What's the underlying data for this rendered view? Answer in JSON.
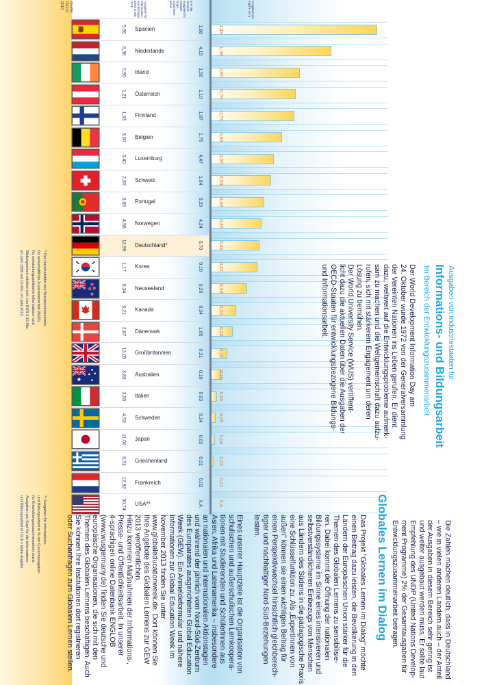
{
  "source": {
    "label": "Quelle:",
    "value": "OECD 2010"
  },
  "column_headers": {
    "spending": "Ausgaben für Informations- und Bildungs- arbeit in Mio. US $",
    "percent": "in % der Gesamt- ausgaben für Entwick- lungs- zusammen- arbeit",
    "per_capita": "Ausgaben pro Kopf in US $"
  },
  "highlight_color": "#fdf0d6",
  "accent_color": "#1ea6e0",
  "chart_data": {
    "type": "bar",
    "orientation": "horizontal",
    "categories": [
      "Spanien",
      "Niederlande",
      "Irland",
      "Österreich",
      "Finnland",
      "Belgien",
      "Luxemburg",
      "Schweiz",
      "Portugal",
      "Norwegen",
      "Deutschland*",
      "Korea",
      "Neuseeland",
      "Kanada",
      "Dänemark",
      "Großbritannien",
      "Australien",
      "Italien",
      "Schweden",
      "Japan",
      "Griechenland",
      "Frankreich",
      "USA**"
    ],
    "flags": [
      "flag-spain",
      "flag-netherlands",
      "flag-ireland",
      "flag-austria",
      "flag-finland",
      "flag-belgium",
      "flag-luxembourg",
      "flag-switzerland",
      "flag-portugal",
      "flag-norway",
      "flag-germany",
      "flag-korea",
      "flag-new-zealand",
      "flag-canada",
      "flag-denmark",
      "flag-united-kingdom",
      "flag-australia",
      "flag-italy",
      "flag-sweden",
      "flag-japan",
      "flag-greece",
      "flag-france",
      "flag-usa"
    ],
    "spending_mio_usd": [
      "5,95",
      "6,36",
      "0,90",
      "1,21",
      "1,33",
      "3,00",
      "0,40",
      "2,30",
      "0,65",
      "4,58",
      "12,99",
      "1,17",
      "0,34",
      "5,21",
      "2,87",
      "13,05",
      "3,83",
      "3,00",
      "4,53",
      "11,02",
      "0,51",
      "12,92",
      "30,74"
    ],
    "percent_of_total": [
      "1,88",
      "4,15",
      "1,56",
      "1,10",
      "1,87",
      "1,76",
      "4,47",
      "1,64",
      "0,29",
      "4,24",
      "0,70",
      "0,10",
      "0,26",
      "0,34",
      "1,05",
      "0,31",
      "0,16",
      "0,03",
      "0,24",
      "0,03",
      "0,01",
      "0,02",
      "k.A."
    ],
    "values": [
      "1,49",
      "1,08",
      "0,80",
      "0,76",
      "0,75",
      "0,64",
      "0,57",
      "0,54",
      "0,48",
      "0,46",
      "0,44",
      "0,42",
      "0,33",
      "0,23",
      "0,20",
      "0,15",
      "0,10",
      "0,06",
      "0,05",
      "0,04",
      "0,03",
      "0,01",
      "k.A."
    ],
    "highlighted": "Deutschland*",
    "xlim": [
      0,
      1.5
    ],
    "bar_gradient": [
      "#fffdf5",
      "#fdd659"
    ],
    "background_color": "#b6dff2"
  },
  "intro": {
    "kicker": "Ausgaben von Industriestaaten für",
    "title": "Informations- und Bildungsarbeit",
    "subtitle": "im Bereich der Entwicklungszusammenarbeit",
    "lines": [
      "Der World Development Information Day am",
      "24. Oktober wurde 1972 von der Generalversammlung",
      "der Vereinten Nationen ins Leben gerufen. Er dient",
      "dazu, weltweit auf die Entwicklungsprobleme aufmerk-",
      "sam zu machen und die Weltgemeinschaft dazu aufzu-",
      "rufen, sich mit stärkerem Engagement um deren",
      "Lösung zu bemühen.",
      "Der World University Service (WUS) veröffent-",
      "licht dazu die aktuellen Daten über die Ausgaben der",
      "OECD-Staaten für entwicklungsbezogene Bildungs-",
      "und Informationsarbeit."
    ]
  },
  "conclusion": {
    "lines": [
      "Die Zahlen machen deutlich, dass in Deutschland",
      "– wie in vielen anderen Ländern auch – der Anteil",
      "der Ausgaben in diesem Bereich sehr gering ist",
      "und weiter ausgebaut werden muss. Er sollte laut",
      "Empfehlung des UNDP (United Nations Develop-",
      "ment Programme) 2% der Gesamtausgaben für",
      "Entwicklungszusammenarbeit betragen."
    ]
  },
  "dialog": {
    "title": "Globales Lernen im Dialog",
    "para1": [
      "Das Projekt \"Globales Lernen im Dialog\" möchte",
      "einen Beitrag dazu leisten, die Bevölkerung in den",
      "Ländern der Europäischen Union stärker für die",
      "Themen des Globalen Lernens zu sensibilisie-",
      "ren. Dabei kommt der Öffnung der nationalen",
      "Bildungssysteme im Sinne eines intensiveren und",
      "selbstverständlicheren Einbezugs von Menschen",
      "aus Ländern des Südens in die pädagogische Praxis",
      "eine Schlüsselfunktion zu. Als „ExpertInnen von",
      "außen\" können sie einen wichtigen Beitrag für",
      "einen Perspektivwechsel hinsichtlich gleichberech-",
      "tigter und nachhaltiger Nord-Süd-Beziehungen",
      "leisten."
    ],
    "para2": [
      "Eines unserer Hauptziele ist die Organisation von",
      "schulischen und außerschulischen Lernkoopera-",
      "tionen mit Studierenden und SchülerInnen aus",
      "Asien, Afrika und Lateinamerika – insbesondere",
      "an nationalen und internationalen Aktionstagen",
      "und während der jährlich vom Nord-Süd-Zentrum",
      "des Europarates ausgerichteten Global Education",
      "Week (GEW). Ein Anmeldeformular und nähere",
      "Informationen zur Global Education Week im",
      "November 2013 finden Sie unter",
      "www.globaleducationweek.de. Dort können Sie",
      "Ihre Angebote des Globalen Lernens zur GEW",
      "2013 veröffentlichen.",
      "Hinzu kommen Maßnahmen der Informations-,",
      "Presse- und Öffentlichkeitsarbeit. In unserer",
      "4-sprachigen online Datenbank ENGLOB",
      "(www.wusgermany.de) finden Sie deutsche und",
      "europäische Organisationen, die sich mit den",
      "Themen des Globalen Lernens beschäftigen. Auch",
      "Sie können Ihre Institutionen dort registrieren",
      "oder Suchanfragen zum Globalen Lernen stellen."
    ]
  },
  "footnotes": {
    "one": [
      "* Der Haushaltstitel des Bundesministeriums",
      "für wirtschaftliche Zusammenarbeit (BMZ)",
      "für entwicklungspolitische Informations- und",
      "Bildungsarbeit erhöhte sich von EUR 2,15 Mio.",
      "im Jahr 1998 auf 15 Mio. im Jahr 2012."
    ],
    "two": [
      "** Ausgaben für Informations-",
      "und Bildungsarbeit in % der Gesamtausgaben",
      "für Entwicklungszusammenarbeit sowie",
      "Ausgaben pro Kopf für die Informations-",
      "und Bildungsarbeit in US $ = keine Angabe"
    ]
  }
}
